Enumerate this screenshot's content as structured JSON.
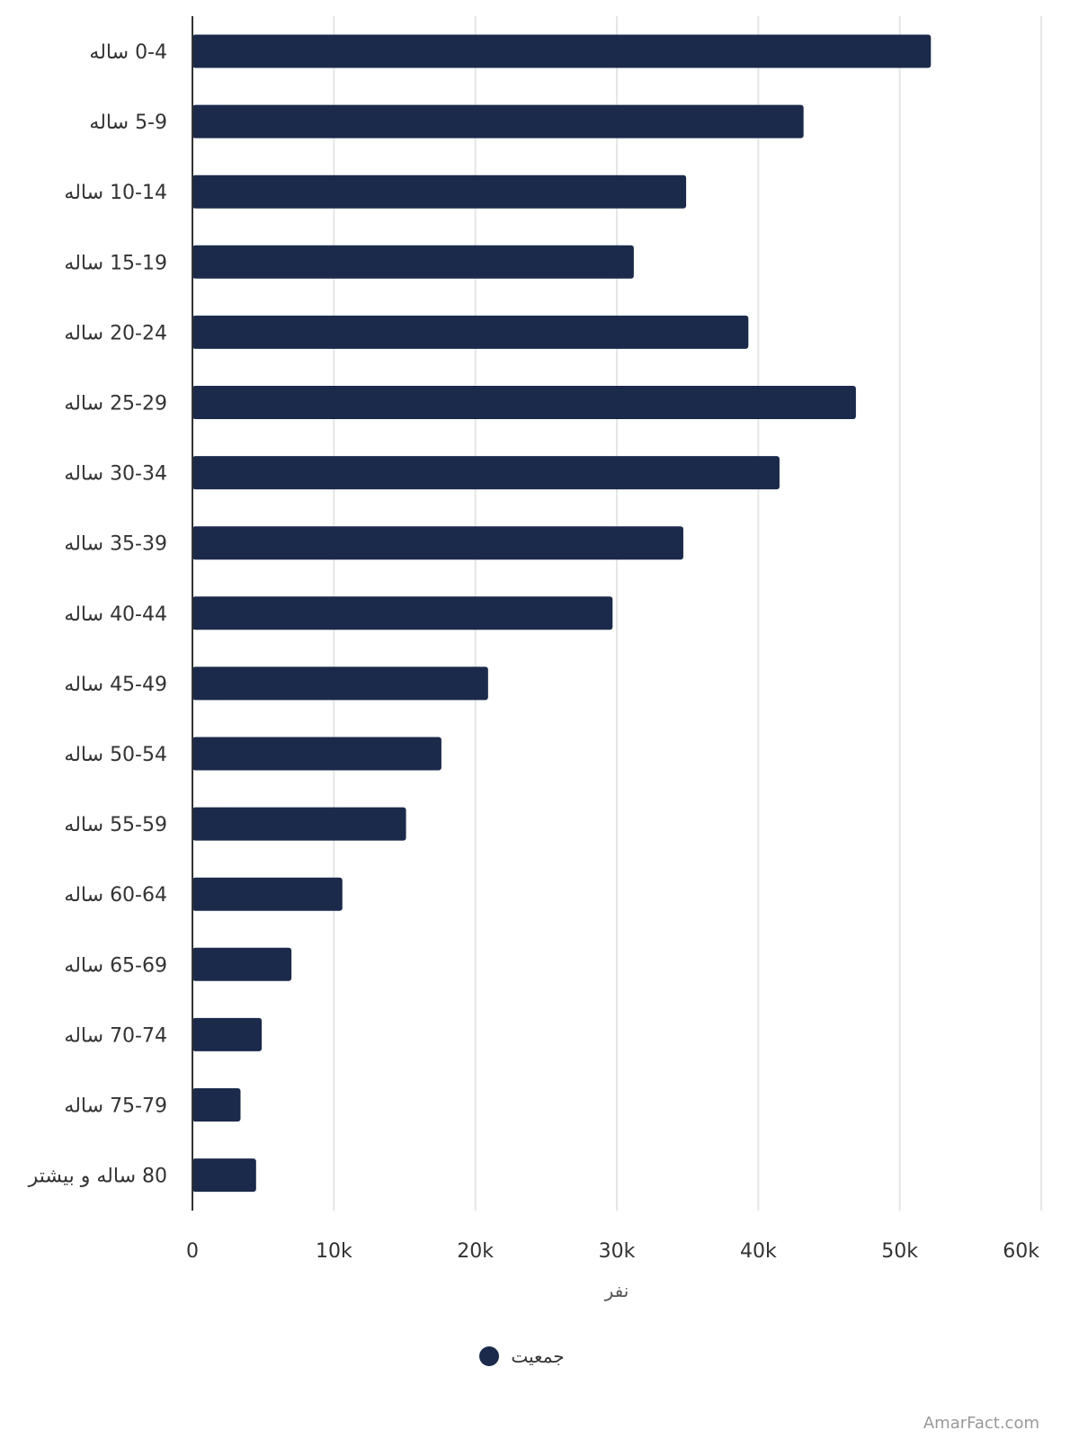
{
  "chart_data": {
    "type": "bar",
    "orientation": "horizontal",
    "categories": [
      "0-4 ساله",
      "5-9 ساله",
      "10-14 ساله",
      "15-19 ساله",
      "20-24 ساله",
      "25-29 ساله",
      "30-34 ساله",
      "35-39 ساله",
      "40-44 ساله",
      "45-49 ساله",
      "50-54 ساله",
      "55-59 ساله",
      "60-64 ساله",
      "65-69 ساله",
      "70-74 ساله",
      "75-79 ساله",
      "80 ساله و بیشتر"
    ],
    "series": [
      {
        "name": "جمعیت",
        "color": "#1b2a4a",
        "values": [
          52200,
          43200,
          34900,
          31200,
          39300,
          46900,
          41500,
          34700,
          29700,
          20900,
          17600,
          15100,
          10600,
          7000,
          4900,
          3400,
          4500
        ]
      }
    ],
    "xlabel": "نفر",
    "ylabel": "",
    "xlim": [
      0,
      60000
    ],
    "ticks": [
      {
        "value": 0,
        "label": "0"
      },
      {
        "value": 10000,
        "label": "10k"
      },
      {
        "value": 20000,
        "label": "20k"
      },
      {
        "value": 30000,
        "label": "30k"
      },
      {
        "value": 40000,
        "label": "40k"
      },
      {
        "value": 50000,
        "label": "50k"
      },
      {
        "value": 60000,
        "label": "60k"
      }
    ],
    "grid": true,
    "legend_position": "bottom-center",
    "colors": {
      "bar": "#1b2a4a",
      "grid": "#e6e6e6",
      "axis": "#333333"
    }
  },
  "credit": "AmarFact.com"
}
